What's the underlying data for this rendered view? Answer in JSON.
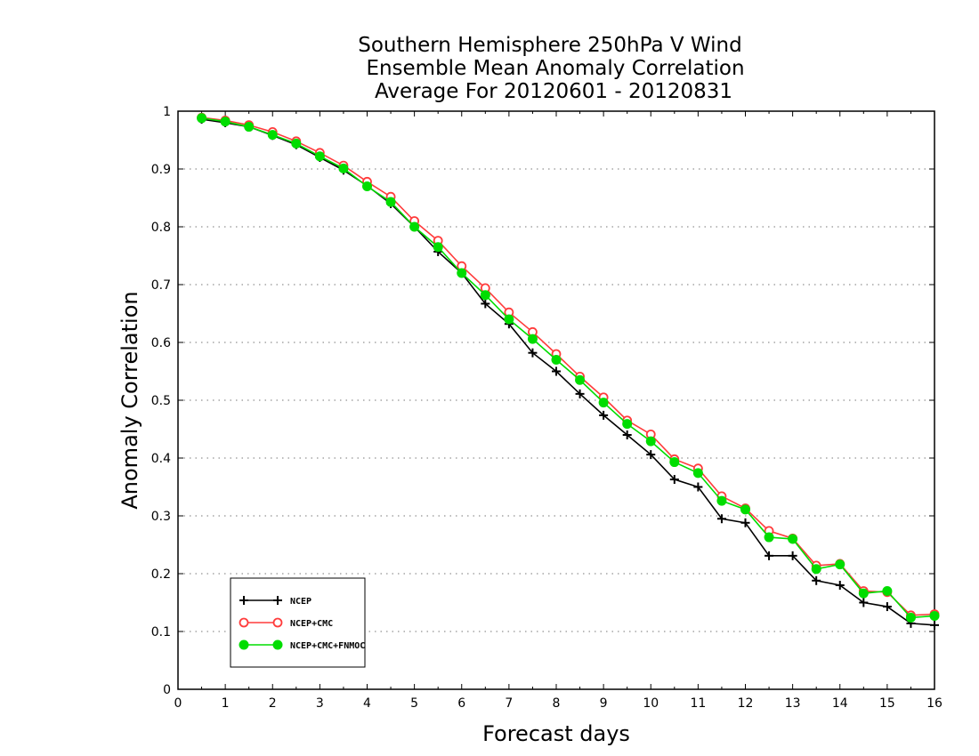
{
  "chart_data": {
    "type": "line",
    "title": [
      "Southern Hemisphere 250hPa V Wind",
      "Ensemble Mean Anomaly Correlation",
      "Average For 20120601 - 20120831"
    ],
    "xlabel": "Forecast days",
    "ylabel": "Anomaly Correlation",
    "xlim": [
      0,
      16
    ],
    "ylim": [
      0,
      1
    ],
    "x_ticks": [
      "0",
      "1",
      "2",
      "3",
      "4",
      "5",
      "6",
      "7",
      "8",
      "9",
      "10",
      "11",
      "12",
      "13",
      "14",
      "15",
      "16"
    ],
    "y_ticks": [
      "0",
      "0.1",
      "0.2",
      "0.3",
      "0.4",
      "0.5",
      "0.6",
      "0.7",
      "0.8",
      "0.9",
      "1"
    ],
    "grid": "horizontal dotted",
    "legend_position": "bottom-left",
    "x": [
      0.5,
      1,
      1.5,
      2,
      2.5,
      3,
      3.5,
      4,
      4.5,
      5,
      5.5,
      6,
      6.5,
      7,
      7.5,
      8,
      8.5,
      9,
      9.5,
      10,
      10.5,
      11,
      11.5,
      12,
      12.5,
      13,
      13.5,
      14,
      14.5,
      15,
      15.5,
      16
    ],
    "series": [
      {
        "name": "NCEP",
        "color": "#000000",
        "marker": "plus",
        "values": [
          0.986,
          0.98,
          0.973,
          0.958,
          0.942,
          0.92,
          0.898,
          0.871,
          0.84,
          0.8,
          0.757,
          0.72,
          0.667,
          0.632,
          0.582,
          0.55,
          0.511,
          0.474,
          0.44,
          0.406,
          0.363,
          0.35,
          0.295,
          0.288,
          0.231,
          0.231,
          0.188,
          0.18,
          0.15,
          0.143,
          0.114,
          0.111
        ]
      },
      {
        "name": "NCEP+CMC",
        "color": "#ff3b3b",
        "marker": "open-circle",
        "values": [
          0.989,
          0.984,
          0.976,
          0.964,
          0.948,
          0.928,
          0.906,
          0.878,
          0.852,
          0.81,
          0.776,
          0.732,
          0.694,
          0.652,
          0.618,
          0.58,
          0.541,
          0.505,
          0.465,
          0.441,
          0.398,
          0.382,
          0.334,
          0.313,
          0.274,
          0.261,
          0.214,
          0.217,
          0.17,
          0.168,
          0.128,
          0.13
        ]
      },
      {
        "name": "NCEP+CMC+FNMOC",
        "color": "#00dd00",
        "marker": "filled-circle",
        "values": [
          0.988,
          0.982,
          0.973,
          0.959,
          0.944,
          0.922,
          0.901,
          0.87,
          0.843,
          0.8,
          0.765,
          0.72,
          0.682,
          0.64,
          0.606,
          0.57,
          0.535,
          0.496,
          0.459,
          0.429,
          0.393,
          0.374,
          0.326,
          0.311,
          0.263,
          0.26,
          0.208,
          0.216,
          0.166,
          0.17,
          0.124,
          0.127
        ]
      }
    ]
  }
}
